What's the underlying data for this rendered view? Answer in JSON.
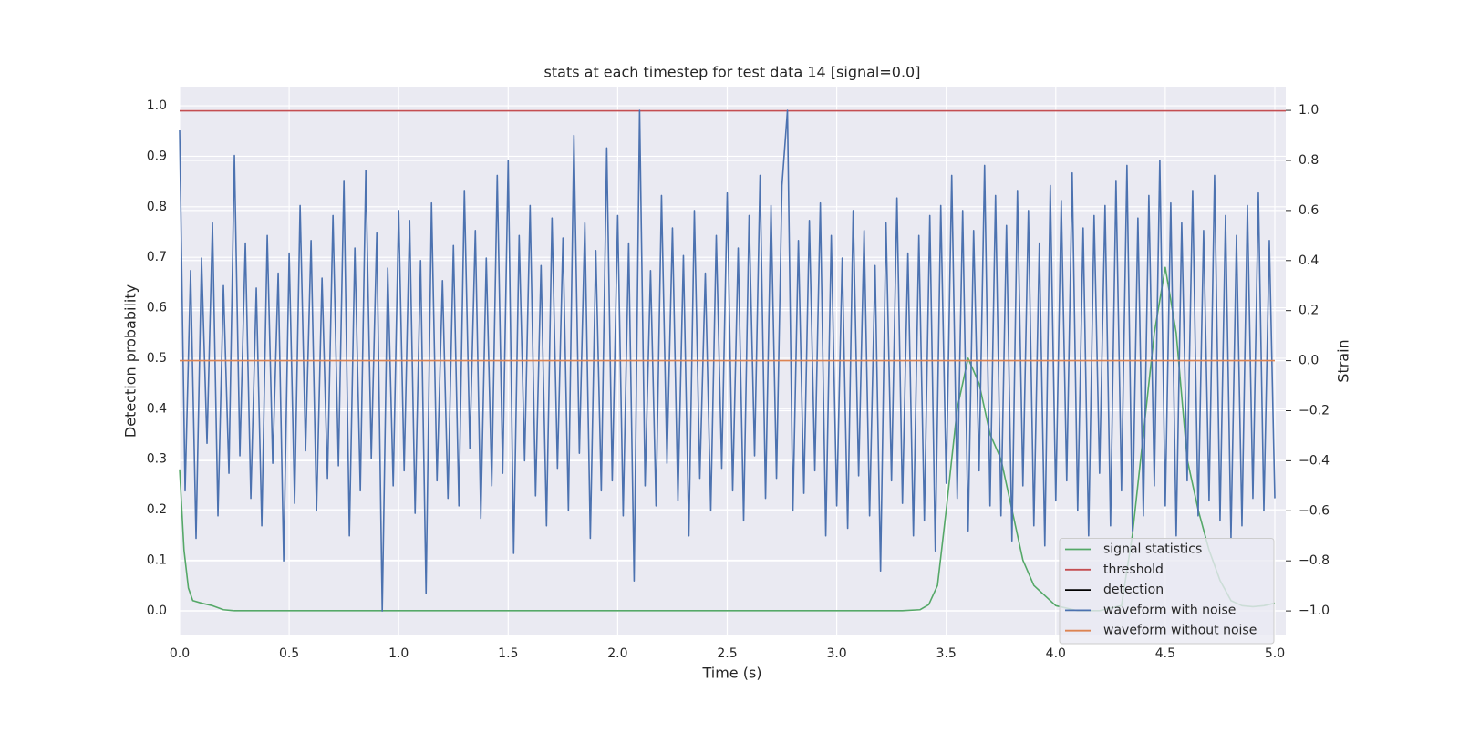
{
  "chart_data": {
    "type": "line",
    "title": "stats at each timestep for test data 14 [signal=0.0]",
    "xlabel": "Time (s)",
    "ylabel": "Detection probability",
    "y2label": "Strain",
    "xlim": [
      0,
      5.05
    ],
    "ylim": [
      -0.049,
      1.038
    ],
    "y2lim": [
      -1.098,
      1.095
    ],
    "xticks": [
      {
        "value": 0,
        "label": "0.0"
      },
      0.5,
      {
        "value": 1,
        "label": "1.0"
      },
      1.5,
      {
        "value": 2,
        "label": "2.0"
      },
      2.5,
      {
        "value": 3,
        "label": "3.0"
      },
      3.5,
      {
        "value": 4,
        "label": "4.0"
      },
      4.5,
      {
        "value": 5,
        "label": "5.0"
      }
    ],
    "yticks": [
      {
        "value": 0,
        "label": "0.0"
      },
      0.1,
      0.2,
      0.3,
      0.4,
      0.5,
      0.6,
      0.7,
      0.8,
      0.9,
      {
        "value": 1,
        "label": "1.0"
      }
    ],
    "y2ticks": [
      {
        "value": -1,
        "label": "−1.0"
      },
      {
        "value": -0.8,
        "label": "−0.8"
      },
      {
        "value": -0.6,
        "label": "−0.6"
      },
      {
        "value": -0.4,
        "label": "−0.4"
      },
      {
        "value": -0.2,
        "label": "−0.2"
      },
      {
        "value": 0,
        "label": "0.0"
      },
      0.2,
      0.4,
      0.6,
      0.8,
      {
        "value": 1,
        "label": "1.0"
      }
    ],
    "grid": true,
    "legend": "lower right",
    "series": [
      {
        "name": "signal statistics",
        "color": "#55a868",
        "x": [
          0,
          0.02,
          0.04,
          0.06,
          0.1,
          0.15,
          0.2,
          0.25,
          0.5,
          1,
          1.5,
          2,
          2.5,
          3,
          3.3,
          3.38,
          3.42,
          3.46,
          3.5,
          3.55,
          3.6,
          3.65,
          3.7,
          3.75,
          3.8,
          3.85,
          3.9,
          4.0,
          4.1,
          4.2,
          4.3,
          4.35,
          4.4,
          4.45,
          4.5,
          4.55,
          4.6,
          4.65,
          4.7,
          4.75,
          4.8,
          4.85,
          4.9,
          4.95,
          5.0
        ],
        "values": [
          0.28,
          0.12,
          0.045,
          0.02,
          0.015,
          0.01,
          0.002,
          0,
          0,
          0,
          0,
          0,
          0,
          0,
          0,
          0.002,
          0.012,
          0.05,
          0.2,
          0.4,
          0.5,
          0.45,
          0.35,
          0.3,
          0.2,
          0.1,
          0.05,
          0.01,
          0,
          0,
          0.01,
          0.15,
          0.35,
          0.55,
          0.68,
          0.55,
          0.3,
          0.2,
          0.12,
          0.06,
          0.02,
          0.01,
          0.008,
          0.01,
          0.015
        ]
      },
      {
        "name": "threshold",
        "color": "#c44e52",
        "x": [
          0,
          5.05
        ],
        "values": [
          0.99,
          0.99
        ]
      },
      {
        "name": "detection",
        "color": "#000000",
        "x": [],
        "values": []
      },
      {
        "name": "waveform with noise",
        "color": "#4c72b0",
        "axis": "y2",
        "x": [
          0,
          0.025,
          0.05,
          0.075,
          0.1,
          0.125,
          0.15,
          0.175,
          0.2,
          0.225,
          0.25,
          0.275,
          0.3,
          0.325,
          0.35,
          0.375,
          0.4,
          0.425,
          0.45,
          0.475,
          0.5,
          0.525,
          0.55,
          0.575,
          0.6,
          0.625,
          0.65,
          0.675,
          0.7,
          0.725,
          0.75,
          0.775,
          0.8,
          0.825,
          0.85,
          0.875,
          0.9,
          0.925,
          0.95,
          0.975,
          1,
          1.025,
          1.05,
          1.075,
          1.1,
          1.125,
          1.15,
          1.175,
          1.2,
          1.225,
          1.25,
          1.275,
          1.3,
          1.325,
          1.35,
          1.375,
          1.4,
          1.425,
          1.45,
          1.475,
          1.5,
          1.525,
          1.55,
          1.575,
          1.6,
          1.625,
          1.65,
          1.675,
          1.7,
          1.725,
          1.75,
          1.775,
          1.8,
          1.825,
          1.85,
          1.875,
          1.9,
          1.925,
          1.95,
          1.975,
          2,
          2.025,
          2.05,
          2.075,
          2.1,
          2.125,
          2.15,
          2.175,
          2.2,
          2.225,
          2.25,
          2.275,
          2.3,
          2.325,
          2.35,
          2.375,
          2.4,
          2.425,
          2.45,
          2.475,
          2.5,
          2.525,
          2.55,
          2.575,
          2.6,
          2.625,
          2.65,
          2.675,
          2.7,
          2.725,
          2.75,
          2.775,
          2.8,
          2.825,
          2.85,
          2.875,
          2.9,
          2.925,
          2.95,
          2.975,
          3,
          3.025,
          3.05,
          3.075,
          3.1,
          3.125,
          3.15,
          3.175,
          3.2,
          3.225,
          3.25,
          3.275,
          3.3,
          3.325,
          3.35,
          3.375,
          3.4,
          3.425,
          3.45,
          3.475,
          3.5,
          3.525,
          3.55,
          3.575,
          3.6,
          3.625,
          3.65,
          3.675,
          3.7,
          3.725,
          3.75,
          3.775,
          3.8,
          3.825,
          3.85,
          3.875,
          3.9,
          3.925,
          3.95,
          3.975,
          4,
          4.025,
          4.05,
          4.075,
          4.1,
          4.125,
          4.15,
          4.175,
          4.2,
          4.225,
          4.25,
          4.275,
          4.3,
          4.325,
          4.35,
          4.375,
          4.4,
          4.425,
          4.45,
          4.475,
          4.5,
          4.525,
          4.55,
          4.575,
          4.6,
          4.625,
          4.65,
          4.675,
          4.7,
          4.725,
          4.75,
          4.775,
          4.8,
          4.825,
          4.85,
          4.875,
          4.9,
          4.925,
          4.95,
          4.975,
          5
        ],
        "values": [
          0.92,
          -0.52,
          0.36,
          -0.71,
          0.41,
          -0.33,
          0.55,
          -0.62,
          0.3,
          -0.45,
          0.82,
          -0.38,
          0.47,
          -0.55,
          0.29,
          -0.66,
          0.5,
          -0.41,
          0.35,
          -0.8,
          0.43,
          -0.57,
          0.62,
          -0.36,
          0.48,
          -0.6,
          0.33,
          -0.47,
          0.58,
          -0.42,
          0.72,
          -0.7,
          0.45,
          -0.52,
          0.76,
          -0.39,
          0.51,
          -1.0,
          0.37,
          -0.5,
          0.6,
          -0.44,
          0.56,
          -0.61,
          0.4,
          -0.93,
          0.63,
          -0.48,
          0.32,
          -0.55,
          0.46,
          -0.58,
          0.68,
          -0.35,
          0.52,
          -0.63,
          0.41,
          -0.5,
          0.74,
          -0.45,
          0.8,
          -0.77,
          0.5,
          -0.4,
          0.62,
          -0.54,
          0.38,
          -0.66,
          0.57,
          -0.43,
          0.49,
          -0.6,
          0.9,
          -0.37,
          0.55,
          -0.71,
          0.44,
          -0.52,
          0.85,
          -0.48,
          0.58,
          -0.62,
          0.47,
          -0.88,
          1.0,
          -0.5,
          0.36,
          -0.58,
          0.66,
          -0.41,
          0.53,
          -0.56,
          0.42,
          -0.7,
          0.6,
          -0.47,
          0.35,
          -0.6,
          0.5,
          -0.43,
          0.67,
          -0.52,
          0.45,
          -0.64,
          0.58,
          -0.38,
          0.74,
          -0.55,
          0.62,
          -0.47,
          0.7,
          1.0,
          -0.6,
          0.48,
          -0.53,
          0.56,
          -0.44,
          0.63,
          -0.7,
          0.5,
          -0.58,
          0.41,
          -0.67,
          0.6,
          -0.46,
          0.52,
          -0.62,
          0.38,
          -0.84,
          0.55,
          -0.48,
          0.65,
          -0.57,
          0.43,
          -0.7,
          0.5,
          -0.64,
          0.58,
          -0.76,
          0.62,
          -0.49,
          0.74,
          -0.55,
          0.6,
          -0.68,
          0.52,
          -0.44,
          0.78,
          -0.58,
          0.66,
          -0.62,
          0.54,
          -0.72,
          0.68,
          -0.5,
          0.6,
          -0.66,
          0.47,
          -0.74,
          0.7,
          -0.56,
          0.64,
          -0.48,
          0.75,
          -0.6,
          0.53,
          -0.7,
          0.58,
          -0.45,
          0.62,
          -0.66,
          0.72,
          -0.52,
          0.78,
          -0.68,
          0.57,
          -0.62,
          0.66,
          -0.5,
          0.8,
          -0.58,
          0.63,
          -0.7,
          0.55,
          -0.48,
          0.68,
          -0.62,
          0.52,
          -0.56,
          0.74,
          -0.64,
          0.58,
          -0.71,
          0.5,
          -0.66,
          0.62,
          -0.55,
          0.67,
          -0.6,
          0.48,
          -0.55
        ]
      },
      {
        "name": "waveform without noise",
        "color": "#dd8452",
        "axis": "y2",
        "x": [
          0,
          5
        ],
        "values": [
          0,
          0
        ]
      }
    ]
  }
}
